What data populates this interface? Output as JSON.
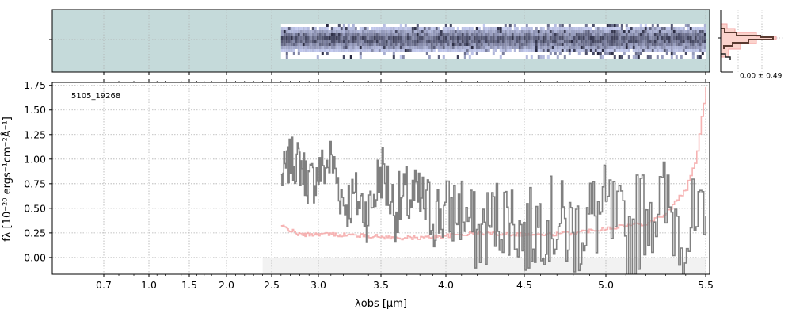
{
  "chart_data": [
    {
      "type": "heatmap",
      "panel": "2d-spectrum",
      "x_range_um": [
        0.5,
        5.55
      ],
      "data_coverage_um": [
        2.6,
        5.5
      ],
      "background_color": "#c5dada",
      "colormap": "gray-blue",
      "y_tick_count": 1
    },
    {
      "type": "line",
      "panel": "1d-spectrum",
      "x_scale": "stretched-wavelength",
      "x_ticks": [
        0.7,
        1.0,
        1.5,
        2.0,
        2.5,
        3.0,
        3.5,
        4.0,
        4.5,
        5.0,
        5.5
      ],
      "x_tick_labels": [
        "0.7",
        "1.0",
        "1.5",
        "2.0",
        "2.5",
        "3.0",
        "3.5",
        "4.0",
        "4.5",
        "5.0",
        "5.5"
      ],
      "y_ticks": [
        0.0,
        0.25,
        0.5,
        0.75,
        1.0,
        1.25,
        1.5,
        1.75
      ],
      "y_tick_labels": [
        "0.00",
        "0.25",
        "0.50",
        "0.75",
        "1.00",
        "1.25",
        "1.50",
        "1.75"
      ],
      "ylim": [
        -0.17,
        1.78
      ],
      "xlabel": "λobs [μm]",
      "ylabel": "fλ [10⁻²⁰ ergs⁻¹cm⁻²Å⁻¹]",
      "grid": true,
      "annotation": "5105_19268",
      "shaded_region_um": [
        2.4,
        5.5
      ],
      "series": [
        {
          "color": "#808080",
          "style": "steps",
          "x": [
            2.6,
            2.7,
            2.8,
            2.9,
            3.0,
            3.1,
            3.2,
            3.3,
            3.4,
            3.5,
            3.6,
            3.7,
            3.8,
            3.9,
            4.0,
            4.1,
            4.2,
            4.3,
            4.4,
            4.5,
            4.6,
            4.7,
            4.8,
            4.9,
            5.0,
            5.1,
            5.2,
            5.3,
            5.4,
            5.5
          ],
          "values": [
            0.8,
            1.0,
            0.95,
            0.75,
            0.85,
            1.0,
            0.55,
            0.6,
            0.45,
            0.9,
            0.5,
            0.6,
            0.55,
            0.45,
            0.45,
            0.5,
            0.2,
            0.4,
            0.45,
            0.2,
            0.4,
            0.35,
            0.25,
            0.4,
            0.45,
            0.15,
            0.55,
            0.5,
            0.3,
            0.15
          ]
        },
        {
          "color": "#f4a6a6",
          "style": "error-line",
          "x": [
            2.6,
            2.8,
            3.0,
            3.2,
            3.4,
            3.6,
            3.8,
            4.0,
            4.2,
            4.4,
            4.6,
            4.8,
            5.0,
            5.2,
            5.3,
            5.4,
            5.45,
            5.5
          ],
          "values": [
            0.32,
            0.23,
            0.24,
            0.23,
            0.22,
            0.2,
            0.2,
            0.22,
            0.25,
            0.24,
            0.23,
            0.25,
            0.3,
            0.35,
            0.45,
            0.7,
            1.0,
            1.75
          ]
        }
      ]
    },
    {
      "type": "line",
      "panel": "histogram",
      "annotation": "0.00 ± 0.49",
      "series_colors": [
        "#f4a6a6",
        "#5a3a30"
      ]
    }
  ]
}
